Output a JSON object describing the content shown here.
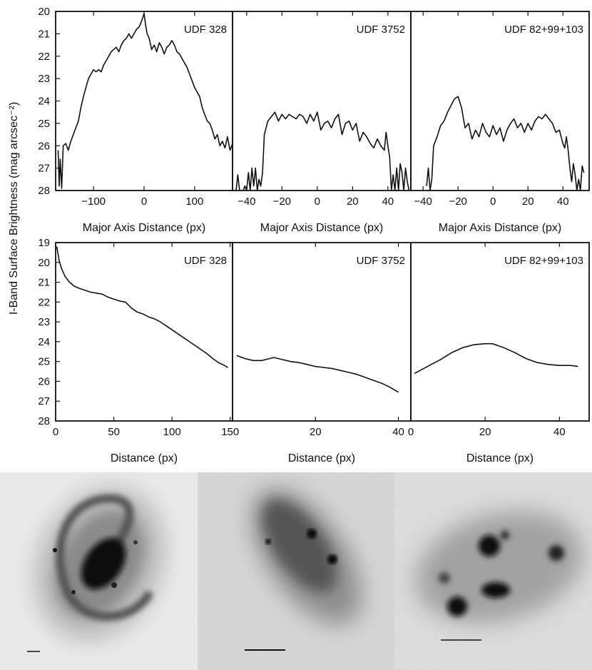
{
  "chart_data": [
    {
      "type": "line",
      "title": "UDF 328",
      "xlabel": "Major Axis Distance (px)",
      "ylabel": "I-Band Surface Brightness (mag arcsec⁻²)",
      "xlim": [
        -175,
        175
      ],
      "ylim": [
        28,
        20
      ],
      "xticks": [
        -100,
        0,
        100
      ],
      "xtick_labels": [
        "−100",
        "0",
        "100"
      ],
      "yticks": [
        20,
        21,
        22,
        23,
        24,
        25,
        26,
        27,
        28
      ],
      "ytick_labels": [
        "20",
        "21",
        "22",
        "23",
        "24",
        "25",
        "26",
        "27",
        "28"
      ],
      "x": [
        -170,
        -168,
        -166,
        -163,
        -160,
        -155,
        -150,
        -145,
        -140,
        -135,
        -130,
        -125,
        -120,
        -115,
        -110,
        -105,
        -100,
        -95,
        -90,
        -85,
        -80,
        -75,
        -70,
        -65,
        -60,
        -55,
        -50,
        -45,
        -40,
        -35,
        -30,
        -25,
        -20,
        -15,
        -10,
        -6,
        -3,
        0,
        3,
        6,
        10,
        15,
        20,
        25,
        30,
        35,
        40,
        45,
        50,
        55,
        60,
        65,
        70,
        75,
        80,
        85,
        90,
        95,
        100,
        105,
        110,
        115,
        120,
        125,
        130,
        135,
        140,
        145,
        150,
        155,
        160,
        165,
        170,
        175
      ],
      "y": [
        26.2,
        27.8,
        26.6,
        27.9,
        26.0,
        25.9,
        26.2,
        25.8,
        25.5,
        25.2,
        24.9,
        24.3,
        23.8,
        23.4,
        23.0,
        22.8,
        22.6,
        22.7,
        22.6,
        22.7,
        22.4,
        22.2,
        22.0,
        21.8,
        21.7,
        21.6,
        21.8,
        21.5,
        21.3,
        21.2,
        21.0,
        21.2,
        21.0,
        20.8,
        20.7,
        20.5,
        20.3,
        20.1,
        20.6,
        21.0,
        21.2,
        21.7,
        21.5,
        21.8,
        21.4,
        21.6,
        21.9,
        21.6,
        21.5,
        21.3,
        21.5,
        21.8,
        21.9,
        22.1,
        22.3,
        22.5,
        22.8,
        23.1,
        23.4,
        23.6,
        23.8,
        24.3,
        24.6,
        24.9,
        25.0,
        25.3,
        25.7,
        25.5,
        26.0,
        25.8,
        26.1,
        25.6,
        26.2,
        25.9
      ]
    },
    {
      "type": "line",
      "title": "UDF 3752",
      "xlabel": "Major Axis Distance (px)",
      "xlim": [
        -48,
        53
      ],
      "ylim": [
        28,
        20
      ],
      "xticks": [
        -40,
        -20,
        0,
        20,
        40
      ],
      "xtick_labels": [
        "−40",
        "−20",
        "0",
        "20",
        "40"
      ],
      "x": [
        -47,
        -46,
        -45,
        -44,
        -43,
        -42,
        -41,
        -40,
        -39,
        -38,
        -37,
        -36,
        -35,
        -34,
        -33,
        -32,
        -31,
        -30,
        -28,
        -26,
        -24,
        -22,
        -20,
        -18,
        -16,
        -14,
        -12,
        -10,
        -8,
        -6,
        -4,
        -2,
        0,
        2,
        4,
        6,
        8,
        10,
        12,
        14,
        16,
        18,
        20,
        22,
        24,
        26,
        28,
        30,
        32,
        34,
        36,
        38,
        39,
        40,
        41,
        42,
        43,
        44,
        45,
        46,
        47,
        48,
        49,
        50,
        51,
        52
      ],
      "y": [
        28.0,
        28.0,
        27.3,
        28.0,
        28.0,
        28.0,
        27.8,
        28.0,
        27.2,
        28.0,
        27.0,
        27.8,
        27.0,
        28.0,
        27.5,
        27.8,
        27.2,
        25.5,
        24.9,
        24.7,
        24.5,
        24.9,
        24.6,
        24.8,
        24.6,
        24.7,
        24.8,
        24.6,
        24.7,
        25.0,
        24.6,
        24.9,
        24.5,
        25.3,
        25.0,
        24.9,
        25.2,
        24.8,
        24.6,
        25.5,
        25.0,
        24.9,
        25.3,
        25.0,
        25.8,
        25.4,
        25.6,
        25.9,
        26.1,
        25.7,
        26.0,
        26.2,
        25.4,
        26.0,
        26.5,
        28.0,
        27.3,
        28.0,
        27.0,
        28.0,
        26.8,
        27.2,
        28.0,
        27.0,
        27.6,
        28.0
      ]
    },
    {
      "type": "line",
      "title": "UDF 82+99+103",
      "xlabel": "Major Axis Distance (px)",
      "xlim": [
        -47,
        55
      ],
      "ylim": [
        28,
        20
      ],
      "xticks": [
        -40,
        -20,
        0,
        20,
        40
      ],
      "xtick_labels": [
        "−40",
        "−20",
        "0",
        "20",
        "40"
      ],
      "x": [
        -38,
        -37,
        -36,
        -35,
        -34,
        -32,
        -30,
        -28,
        -26,
        -24,
        -22,
        -20,
        -18,
        -16,
        -14,
        -12,
        -10,
        -8,
        -6,
        -4,
        -2,
        0,
        2,
        4,
        6,
        8,
        10,
        12,
        14,
        16,
        18,
        20,
        22,
        24,
        26,
        28,
        30,
        32,
        34,
        36,
        38,
        40,
        41,
        42,
        43,
        44,
        45,
        46,
        47,
        48,
        49,
        50,
        51,
        52
      ],
      "y": [
        27.8,
        27.0,
        28.0,
        27.5,
        26.0,
        25.6,
        25.1,
        24.9,
        24.5,
        24.2,
        23.9,
        23.8,
        24.3,
        25.2,
        25.0,
        25.7,
        25.3,
        25.6,
        25.0,
        25.4,
        25.6,
        25.1,
        25.5,
        25.2,
        25.8,
        25.3,
        25.0,
        24.8,
        25.2,
        25.0,
        25.4,
        25.0,
        25.3,
        24.9,
        24.7,
        24.8,
        24.6,
        24.8,
        25.0,
        25.4,
        25.3,
        25.9,
        26.1,
        25.6,
        26.2,
        27.0,
        27.6,
        26.8,
        27.3,
        28.0,
        27.5,
        28.0,
        26.9,
        27.2
      ]
    },
    {
      "type": "line",
      "title": "UDF 328",
      "xlabel": "Distance (px)",
      "xlim": [
        0,
        152
      ],
      "ylim": [
        28,
        19
      ],
      "xticks": [
        0,
        50,
        100,
        150
      ],
      "xtick_labels": [
        "0",
        "50",
        "100",
        "150"
      ],
      "yticks": [
        19,
        20,
        21,
        22,
        23,
        24,
        25,
        26,
        27,
        28
      ],
      "ytick_labels": [
        "19",
        "20",
        "21",
        "22",
        "23",
        "24",
        "25",
        "26",
        "27",
        "28"
      ],
      "x": [
        1,
        3,
        5,
        8,
        12,
        16,
        20,
        25,
        30,
        35,
        40,
        45,
        50,
        55,
        60,
        65,
        70,
        75,
        80,
        85,
        90,
        95,
        100,
        105,
        110,
        115,
        120,
        125,
        130,
        135,
        140,
        145,
        148
      ],
      "y": [
        19.2,
        19.9,
        20.3,
        20.7,
        21.0,
        21.2,
        21.3,
        21.4,
        21.5,
        21.55,
        21.6,
        21.75,
        21.85,
        21.95,
        22.0,
        22.3,
        22.5,
        22.6,
        22.75,
        22.85,
        23.0,
        23.2,
        23.4,
        23.6,
        23.8,
        24.0,
        24.2,
        24.4,
        24.6,
        24.85,
        25.05,
        25.2,
        25.3
      ]
    },
    {
      "type": "line",
      "title": "UDF 3752",
      "xlabel": "Distance (px)",
      "xlim": [
        0,
        43
      ],
      "ylim": [
        28,
        19
      ],
      "xticks": [
        20,
        40
      ],
      "xtick_labels": [
        "20",
        "40"
      ],
      "x": [
        1,
        3,
        5,
        7,
        9,
        10,
        12,
        14,
        16,
        18,
        20,
        22,
        24,
        26,
        28,
        30,
        32,
        34,
        36,
        38,
        40
      ],
      "y": [
        24.7,
        24.85,
        24.95,
        24.95,
        24.85,
        24.8,
        24.9,
        25.0,
        25.05,
        25.15,
        25.25,
        25.3,
        25.35,
        25.45,
        25.55,
        25.65,
        25.8,
        25.95,
        26.1,
        26.3,
        26.55
      ]
    },
    {
      "type": "line",
      "title": "UDF 82+99+103",
      "xlabel": "Distance (px)",
      "xlim": [
        0,
        48
      ],
      "ylim": [
        28,
        19
      ],
      "xticks": [
        0,
        20,
        40
      ],
      "xtick_labels": [
        "0",
        "20",
        "40"
      ],
      "x": [
        1,
        3,
        5,
        8,
        11,
        14,
        17,
        20,
        22,
        25,
        28,
        31,
        34,
        37,
        40,
        43,
        45
      ],
      "y": [
        25.6,
        25.4,
        25.2,
        24.9,
        24.55,
        24.3,
        24.15,
        24.1,
        24.1,
        24.3,
        24.55,
        24.85,
        25.05,
        25.15,
        25.2,
        25.2,
        25.25
      ]
    }
  ],
  "figure": {
    "ylabel": "I-Band Surface Brightness (mag arcsec⁻²)"
  }
}
